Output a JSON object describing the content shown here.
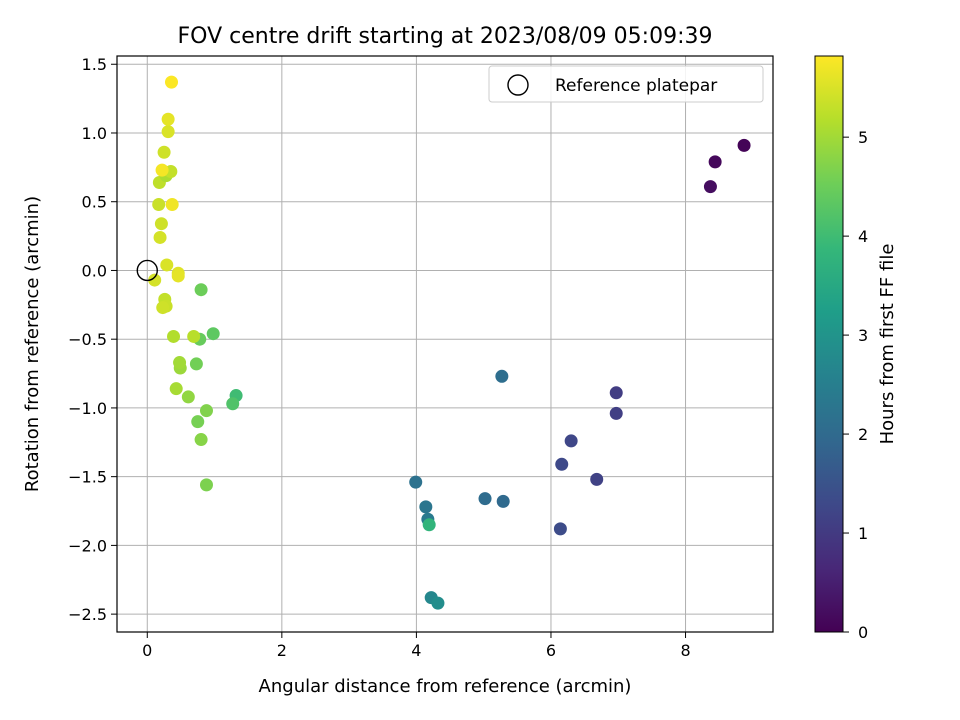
{
  "chart_data": {
    "type": "scatter",
    "title": "FOV centre drift starting at 2023/08/09 05:09:39",
    "xlabel": "Angular distance from reference (arcmin)",
    "ylabel": "Rotation from reference (arcmin)",
    "xlim": [
      -0.45,
      9.3
    ],
    "ylim": [
      -2.63,
      1.56
    ],
    "xticks": [
      0,
      2,
      4,
      6,
      8
    ],
    "yticks": [
      -2.5,
      -2.0,
      -1.5,
      -1.0,
      -0.5,
      0.0,
      0.5,
      1.0,
      1.5
    ],
    "xtick_labels": [
      "0",
      "2",
      "4",
      "6",
      "8"
    ],
    "ytick_labels": [
      "−2.5",
      "−2.0",
      "−1.5",
      "−1.0",
      "−0.5",
      "0.0",
      "0.5",
      "1.0",
      "1.5"
    ],
    "grid": true,
    "legend": {
      "placement": "top-right",
      "entries": [
        "Reference platepar"
      ]
    },
    "reference_point": {
      "x": 0,
      "y": 0,
      "label": "Reference platepar"
    },
    "colorbar": {
      "label": "Hours from first FF file",
      "range": [
        0,
        5.82
      ],
      "ticks": [
        0,
        1,
        2,
        3,
        4,
        5
      ],
      "tick_labels": [
        "0",
        "1",
        "2",
        "3",
        "4",
        "5"
      ],
      "colormap": "viridis"
    },
    "points": [
      {
        "x": 8.87,
        "y": 0.91,
        "c": 0.05
      },
      {
        "x": 8.44,
        "y": 0.79,
        "c": 0.12
      },
      {
        "x": 8.37,
        "y": 0.61,
        "c": 0.2
      },
      {
        "x": 6.97,
        "y": -0.89,
        "c": 1.05
      },
      {
        "x": 6.97,
        "y": -1.04,
        "c": 1.1
      },
      {
        "x": 6.68,
        "y": -1.52,
        "c": 1.15
      },
      {
        "x": 6.3,
        "y": -1.24,
        "c": 1.25
      },
      {
        "x": 6.16,
        "y": -1.41,
        "c": 1.3
      },
      {
        "x": 6.14,
        "y": -1.88,
        "c": 1.35
      },
      {
        "x": 5.29,
        "y": -1.68,
        "c": 2.0
      },
      {
        "x": 5.27,
        "y": -0.77,
        "c": 2.1
      },
      {
        "x": 5.02,
        "y": -1.66,
        "c": 2.05
      },
      {
        "x": 3.99,
        "y": -1.54,
        "c": 2.2
      },
      {
        "x": 4.14,
        "y": -1.72,
        "c": 2.3
      },
      {
        "x": 4.17,
        "y": -1.81,
        "c": 2.4
      },
      {
        "x": 4.22,
        "y": -2.38,
        "c": 2.7
      },
      {
        "x": 4.32,
        "y": -2.42,
        "c": 2.85
      },
      {
        "x": 4.19,
        "y": -1.85,
        "c": 3.8
      },
      {
        "x": 1.32,
        "y": -0.91,
        "c": 4.0
      },
      {
        "x": 1.27,
        "y": -0.97,
        "c": 4.2
      },
      {
        "x": 0.98,
        "y": -0.46,
        "c": 4.35
      },
      {
        "x": 0.8,
        "y": -0.14,
        "c": 4.5
      },
      {
        "x": 0.73,
        "y": -0.68,
        "c": 4.55
      },
      {
        "x": 0.78,
        "y": -0.5,
        "c": 4.45
      },
      {
        "x": 0.75,
        "y": -1.1,
        "c": 4.6
      },
      {
        "x": 0.88,
        "y": -1.56,
        "c": 4.65
      },
      {
        "x": 0.88,
        "y": -1.02,
        "c": 4.7
      },
      {
        "x": 0.8,
        "y": -1.23,
        "c": 4.75
      },
      {
        "x": 0.61,
        "y": -0.92,
        "c": 4.85
      },
      {
        "x": 0.49,
        "y": -0.71,
        "c": 4.95
      },
      {
        "x": 0.48,
        "y": -0.67,
        "c": 5.0
      },
      {
        "x": 0.43,
        "y": -0.86,
        "c": 5.05
      },
      {
        "x": 0.39,
        "y": -0.48,
        "c": 5.15
      },
      {
        "x": 0.69,
        "y": -0.48,
        "c": 5.2
      },
      {
        "x": 0.26,
        "y": -0.21,
        "c": 5.3
      },
      {
        "x": 0.28,
        "y": -0.26,
        "c": 5.35
      },
      {
        "x": 0.23,
        "y": -0.27,
        "c": 5.4
      },
      {
        "x": 0.11,
        "y": -0.07,
        "c": 5.45
      },
      {
        "x": 0.29,
        "y": 0.04,
        "c": 5.5
      },
      {
        "x": 0.46,
        "y": -0.02,
        "c": 5.55
      },
      {
        "x": 0.46,
        "y": -0.04,
        "c": 5.6
      },
      {
        "x": 0.19,
        "y": 0.24,
        "c": 5.45
      },
      {
        "x": 0.21,
        "y": 0.34,
        "c": 5.4
      },
      {
        "x": 0.17,
        "y": 0.48,
        "c": 5.35
      },
      {
        "x": 0.37,
        "y": 0.48,
        "c": 5.7
      },
      {
        "x": 0.18,
        "y": 0.64,
        "c": 5.25
      },
      {
        "x": 0.28,
        "y": 0.69,
        "c": 5.1
      },
      {
        "x": 0.35,
        "y": 0.72,
        "c": 5.3
      },
      {
        "x": 0.22,
        "y": 0.73,
        "c": 5.75
      },
      {
        "x": 0.25,
        "y": 0.86,
        "c": 5.4
      },
      {
        "x": 0.31,
        "y": 1.01,
        "c": 5.5
      },
      {
        "x": 0.31,
        "y": 1.1,
        "c": 5.6
      },
      {
        "x": 0.36,
        "y": 1.37,
        "c": 5.8
      }
    ]
  }
}
